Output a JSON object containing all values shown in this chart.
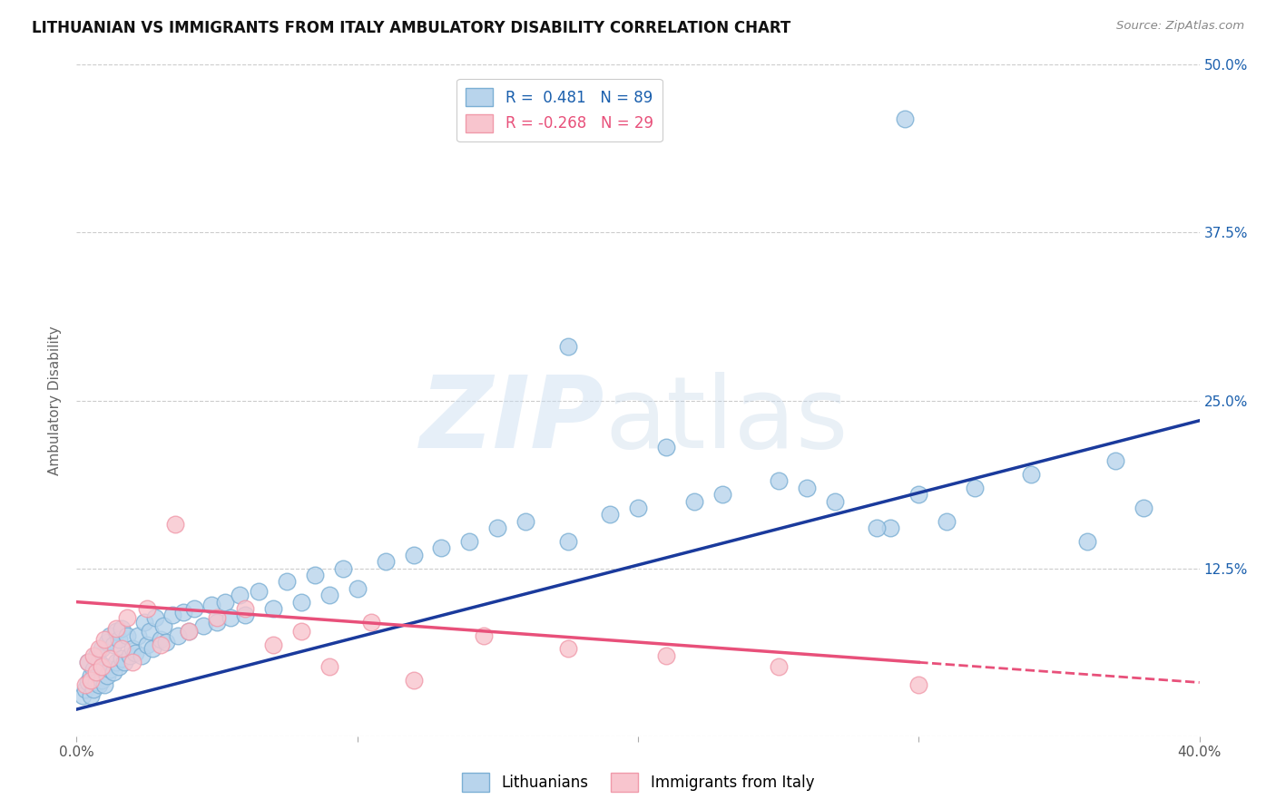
{
  "title": "LITHUANIAN VS IMMIGRANTS FROM ITALY AMBULATORY DISABILITY CORRELATION CHART",
  "source": "Source: ZipAtlas.com",
  "ylabel": "Ambulatory Disability",
  "x_min": 0.0,
  "x_max": 0.4,
  "y_min": 0.0,
  "y_max": 0.5,
  "blue_color": "#7BAFD4",
  "blue_face": "#B8D4EC",
  "pink_color": "#F09AAA",
  "pink_face": "#F8C5CE",
  "trend_blue": "#1A3A9C",
  "trend_pink": "#E8507A",
  "legend_R_blue": "0.481",
  "legend_N_blue": "89",
  "legend_R_pink": "-0.268",
  "legend_N_pink": "29",
  "label_blue": "Lithuanians",
  "label_pink": "Immigrants from Italy",
  "blue_scatter_x": [
    0.002,
    0.003,
    0.004,
    0.004,
    0.005,
    0.005,
    0.006,
    0.006,
    0.007,
    0.007,
    0.008,
    0.008,
    0.009,
    0.009,
    0.01,
    0.01,
    0.011,
    0.011,
    0.012,
    0.012,
    0.013,
    0.013,
    0.014,
    0.014,
    0.015,
    0.015,
    0.016,
    0.016,
    0.017,
    0.018,
    0.019,
    0.02,
    0.021,
    0.022,
    0.023,
    0.024,
    0.025,
    0.026,
    0.027,
    0.028,
    0.03,
    0.031,
    0.032,
    0.034,
    0.036,
    0.038,
    0.04,
    0.042,
    0.045,
    0.048,
    0.05,
    0.053,
    0.055,
    0.058,
    0.06,
    0.065,
    0.07,
    0.075,
    0.08,
    0.085,
    0.09,
    0.095,
    0.1,
    0.11,
    0.12,
    0.13,
    0.14,
    0.15,
    0.16,
    0.175,
    0.19,
    0.2,
    0.21,
    0.22,
    0.23,
    0.25,
    0.26,
    0.27,
    0.29,
    0.3,
    0.31,
    0.32,
    0.34,
    0.36,
    0.37,
    0.38,
    0.285,
    0.175,
    0.295
  ],
  "blue_scatter_y": [
    0.03,
    0.035,
    0.04,
    0.055,
    0.03,
    0.045,
    0.035,
    0.05,
    0.04,
    0.06,
    0.038,
    0.055,
    0.042,
    0.065,
    0.038,
    0.052,
    0.045,
    0.07,
    0.05,
    0.075,
    0.048,
    0.068,
    0.055,
    0.078,
    0.052,
    0.072,
    0.058,
    0.08,
    0.055,
    0.075,
    0.06,
    0.065,
    0.062,
    0.075,
    0.06,
    0.085,
    0.068,
    0.078,
    0.065,
    0.088,
    0.072,
    0.082,
    0.07,
    0.09,
    0.075,
    0.092,
    0.078,
    0.095,
    0.082,
    0.098,
    0.085,
    0.1,
    0.088,
    0.105,
    0.09,
    0.108,
    0.095,
    0.115,
    0.1,
    0.12,
    0.105,
    0.125,
    0.11,
    0.13,
    0.135,
    0.14,
    0.145,
    0.155,
    0.16,
    0.29,
    0.165,
    0.17,
    0.215,
    0.175,
    0.18,
    0.19,
    0.185,
    0.175,
    0.155,
    0.18,
    0.16,
    0.185,
    0.195,
    0.145,
    0.205,
    0.17,
    0.155,
    0.145,
    0.46
  ],
  "pink_scatter_x": [
    0.003,
    0.004,
    0.005,
    0.006,
    0.007,
    0.008,
    0.009,
    0.01,
    0.012,
    0.014,
    0.016,
    0.018,
    0.02,
    0.025,
    0.03,
    0.035,
    0.04,
    0.05,
    0.06,
    0.07,
    0.08,
    0.09,
    0.105,
    0.12,
    0.145,
    0.175,
    0.21,
    0.25,
    0.3
  ],
  "pink_scatter_y": [
    0.038,
    0.055,
    0.042,
    0.06,
    0.048,
    0.065,
    0.052,
    0.072,
    0.058,
    0.08,
    0.065,
    0.088,
    0.055,
    0.095,
    0.068,
    0.158,
    0.078,
    0.088,
    0.095,
    0.068,
    0.078,
    0.052,
    0.085,
    0.042,
    0.075,
    0.065,
    0.06,
    0.052,
    0.038
  ]
}
